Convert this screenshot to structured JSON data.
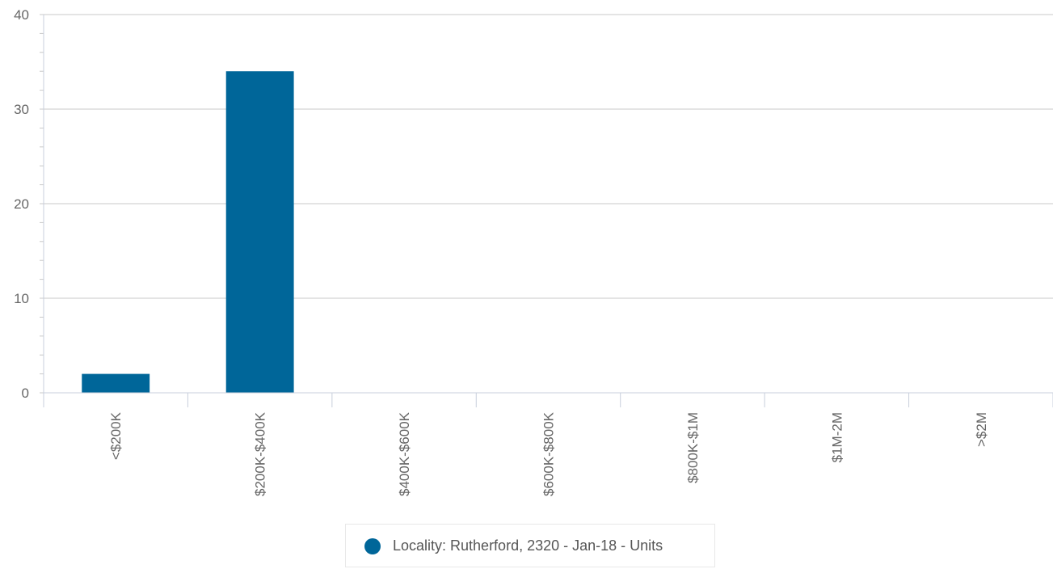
{
  "chart_data": {
    "type": "bar",
    "categories": [
      "<$200K",
      "$200K-$400K",
      "$400K-$600K",
      "$600K-$800K",
      "$800K-$1M",
      "$1M-2M",
      ">$2M"
    ],
    "series": [
      {
        "name": "Locality: Rutherford, 2320 - Jan-18 - Units",
        "values": [
          2,
          34,
          0,
          0,
          0,
          0,
          0
        ]
      }
    ],
    "ylim": [
      0,
      40
    ],
    "yticks": [
      0,
      10,
      20,
      30,
      40
    ],
    "grid": true,
    "legend_position": "bottom-center",
    "colors": {
      "series": "#006699",
      "grid": "#c8c8c8",
      "axis": "#c8cfdc"
    }
  },
  "legend": {
    "label": "Locality: Rutherford, 2320 - Jan-18 - Units"
  }
}
